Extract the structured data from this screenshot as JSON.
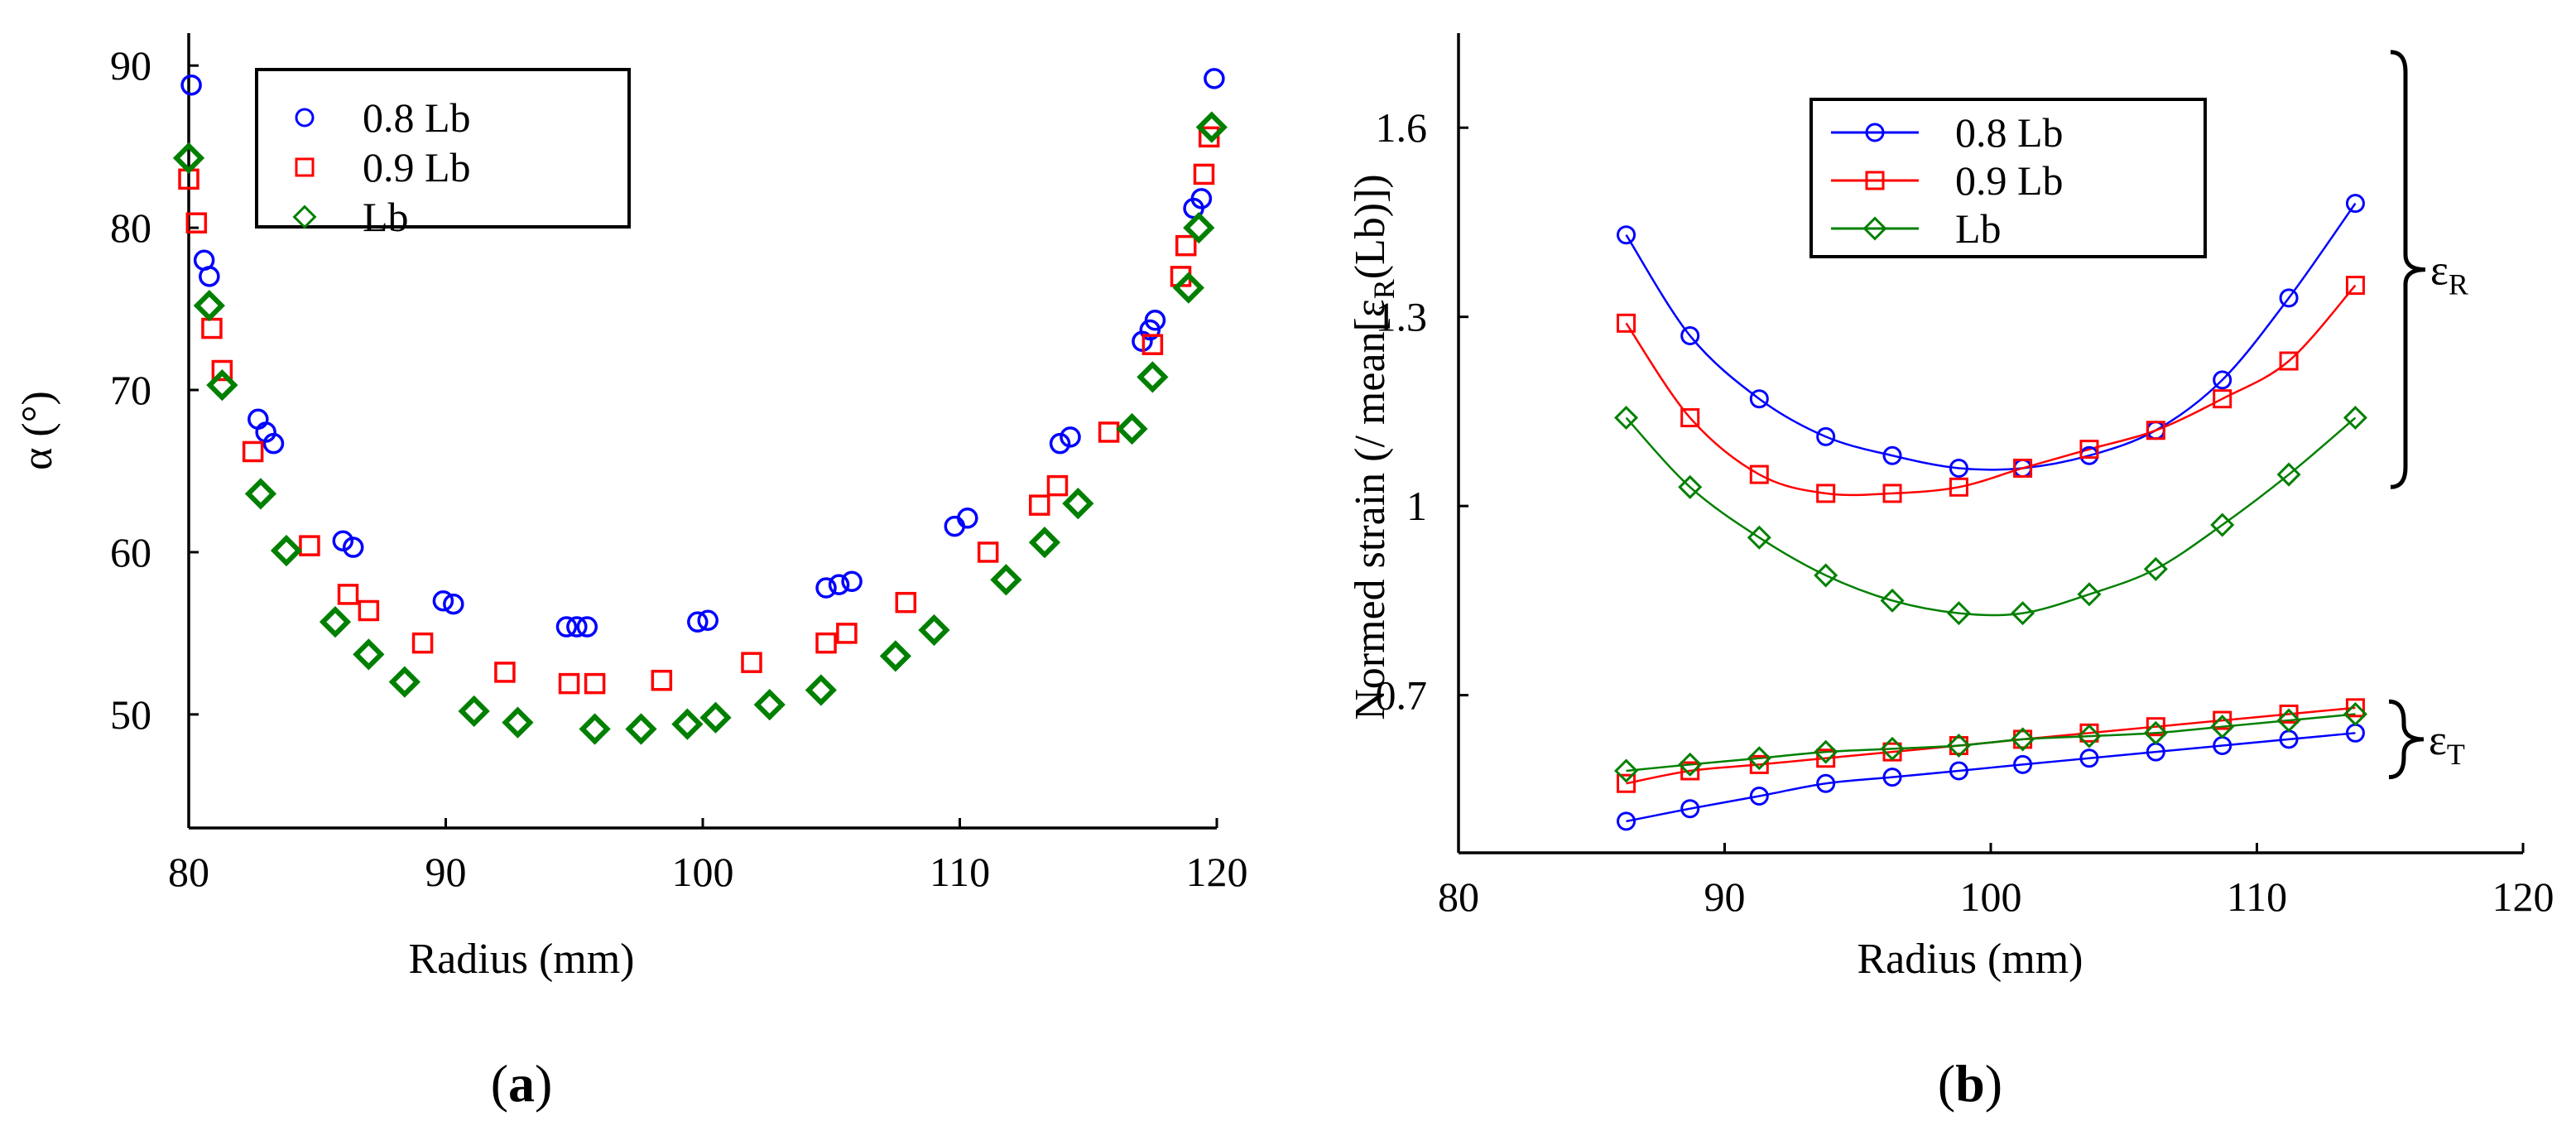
{
  "chart_data": [
    {
      "type": "scatter",
      "panel_label": "a",
      "title": "",
      "xlabel": "Radius (mm)",
      "ylabel": "α (°)",
      "xlim": [
        80,
        120
      ],
      "ylim": [
        43,
        92
      ],
      "xticks": [
        80,
        90,
        100,
        110,
        120
      ],
      "yticks": [
        50,
        60,
        70,
        80,
        90
      ],
      "legend_position": "top-left",
      "series": [
        {
          "name": "0.8 Lb",
          "color": "#0000ff",
          "marker": "circle",
          "x": [
            80.1,
            80.6,
            80.8,
            82.7,
            83.0,
            83.3,
            86.0,
            86.4,
            89.9,
            90.3,
            94.7,
            95.1,
            95.5,
            99.8,
            100.2,
            104.8,
            105.3,
            105.8,
            109.8,
            110.3,
            113.9,
            114.3,
            117.1,
            117.4,
            117.6,
            119.1,
            119.4,
            119.9
          ],
          "y": [
            88.8,
            78.0,
            77.0,
            68.2,
            67.4,
            66.7,
            60.7,
            60.3,
            57.0,
            56.8,
            55.4,
            55.4,
            55.4,
            55.7,
            55.8,
            57.8,
            58.0,
            58.2,
            61.6,
            62.1,
            66.7,
            67.1,
            73.0,
            73.7,
            74.3,
            81.2,
            81.8,
            89.2
          ]
        },
        {
          "name": "0.9 Lb",
          "color": "#ff0000",
          "marker": "square",
          "x": [
            80.0,
            80.3,
            80.9,
            81.3,
            82.5,
            84.7,
            86.2,
            87.0,
            89.1,
            92.3,
            94.8,
            95.8,
            98.4,
            101.9,
            104.8,
            105.6,
            107.9,
            111.1,
            113.1,
            113.8,
            115.8,
            117.5,
            118.6,
            118.8,
            119.5,
            119.7
          ],
          "y": [
            83.0,
            80.3,
            73.8,
            71.2,
            66.2,
            60.4,
            57.4,
            56.4,
            54.4,
            52.6,
            51.9,
            51.9,
            52.1,
            53.2,
            54.4,
            55.0,
            56.9,
            60.0,
            62.9,
            64.1,
            67.4,
            72.8,
            77.0,
            78.9,
            83.3,
            85.6
          ]
        },
        {
          "name": "Lb",
          "color": "#008000",
          "marker": "diamond",
          "x": [
            80.0,
            80.8,
            81.3,
            82.8,
            83.8,
            85.7,
            87.0,
            88.4,
            91.1,
            92.8,
            95.8,
            97.6,
            99.4,
            100.5,
            102.6,
            104.6,
            107.5,
            109.0,
            111.8,
            113.3,
            114.6,
            116.7,
            117.5,
            118.9,
            119.3,
            119.8
          ],
          "y": [
            84.3,
            75.2,
            70.3,
            63.6,
            60.1,
            55.7,
            53.7,
            52.0,
            50.2,
            49.5,
            49.1,
            49.1,
            49.4,
            49.8,
            50.6,
            51.5,
            53.6,
            55.2,
            58.3,
            60.6,
            63.0,
            67.6,
            70.8,
            76.3,
            80.0,
            86.2
          ]
        }
      ]
    },
    {
      "type": "line",
      "panel_label": "b",
      "title": "",
      "xlabel": "Radius (mm)",
      "ylabel": "Normed strain (/ mean[ε",
      "ylabel_sub": "R",
      "ylabel_end": "(Lb)])",
      "xlim": [
        80,
        120
      ],
      "ylim": [
        0.45,
        1.75
      ],
      "xticks": [
        80,
        90,
        100,
        110,
        120
      ],
      "yticks": [
        0.7,
        1,
        1.3,
        1.6
      ],
      "ytick_labels": [
        "0.7",
        "1",
        "1.3",
        "1.6"
      ],
      "legend_position": "top-center",
      "x": [
        86.3,
        88.7,
        91.3,
        93.8,
        96.3,
        98.8,
        101.2,
        103.7,
        106.2,
        108.7,
        111.2,
        113.7
      ],
      "series": [
        {
          "name": "0.8 Lb",
          "group": "R",
          "color": "#0000ff",
          "marker": "circle",
          "y": [
            1.43,
            1.27,
            1.17,
            1.11,
            1.08,
            1.06,
            1.06,
            1.08,
            1.12,
            1.2,
            1.33,
            1.48
          ]
        },
        {
          "name": "0.9 Lb",
          "group": "R",
          "color": "#ff0000",
          "marker": "square",
          "y": [
            1.29,
            1.14,
            1.05,
            1.02,
            1.02,
            1.03,
            1.06,
            1.09,
            1.12,
            1.17,
            1.23,
            1.35
          ]
        },
        {
          "name": "Lb",
          "group": "R",
          "color": "#008000",
          "marker": "diamond",
          "y": [
            1.14,
            1.03,
            0.95,
            0.89,
            0.85,
            0.83,
            0.83,
            0.86,
            0.9,
            0.97,
            1.05,
            1.14
          ]
        },
        {
          "name": "0.8 Lb",
          "group": "T",
          "color": "#0000ff",
          "marker": "circle",
          "y": [
            0.5,
            0.52,
            0.54,
            0.56,
            0.57,
            0.58,
            0.59,
            0.6,
            0.61,
            0.62,
            0.63,
            0.64
          ]
        },
        {
          "name": "0.9 Lb",
          "group": "T",
          "color": "#ff0000",
          "marker": "square",
          "y": [
            0.56,
            0.58,
            0.59,
            0.6,
            0.61,
            0.62,
            0.63,
            0.64,
            0.65,
            0.66,
            0.67,
            0.68
          ]
        },
        {
          "name": "Lb",
          "group": "T",
          "color": "#008000",
          "marker": "diamond",
          "y": [
            0.58,
            0.59,
            0.6,
            0.61,
            0.615,
            0.62,
            0.63,
            0.635,
            0.64,
            0.65,
            0.66,
            0.67
          ]
        }
      ],
      "annotations": [
        {
          "label": "ε",
          "sub": "R",
          "brace": [
            1.03,
            1.72
          ]
        },
        {
          "label": "ε",
          "sub": "T",
          "brace": [
            0.57,
            0.69
          ]
        }
      ]
    }
  ]
}
